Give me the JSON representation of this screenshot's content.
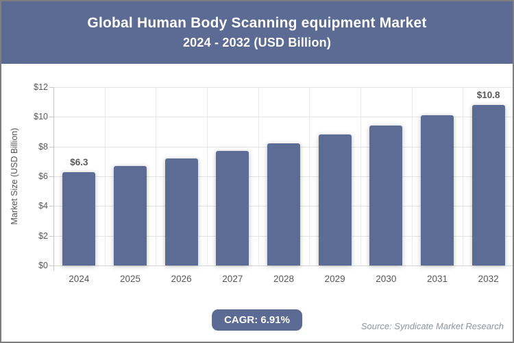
{
  "header": {
    "title_line1": "Global Human Body Scanning equipment Market",
    "title_line2": "2024 - 2032 (USD Billion)"
  },
  "chart_data": {
    "type": "bar",
    "title": "Global Human Body Scanning equipment Market",
    "subtitle": "2024 - 2032 (USD Billion)",
    "categories": [
      "2024",
      "2025",
      "2026",
      "2027",
      "2028",
      "2029",
      "2030",
      "2031",
      "2032"
    ],
    "values": [
      6.3,
      6.7,
      7.2,
      7.7,
      8.2,
      8.8,
      9.4,
      10.1,
      10.8
    ],
    "bar_value_labels": [
      "$6.3",
      null,
      null,
      null,
      null,
      null,
      null,
      null,
      "$10.8"
    ],
    "xlabel": "",
    "ylabel": "Market Size (USD Billion)",
    "ylim": [
      0,
      12
    ],
    "ytick_step": 2,
    "ytick_prefix": "$",
    "ytick_labels": [
      "$0",
      "$2",
      "$4",
      "$6",
      "$8",
      "$10",
      "$12"
    ],
    "grid": true,
    "legend": "none",
    "bar_color": "#5d6c94"
  },
  "footer": {
    "cagr_badge": "CAGR: 6.91%",
    "source": "Source: Syndicate Market Research"
  },
  "colors": {
    "header_bg": "#5c6b94",
    "bar": "#5d6c94",
    "badge_bg": "#5c6b94",
    "grid_line": "#e4e4e4",
    "axis_line": "#c6c6c6",
    "tick_text": "#595959",
    "source_text": "#8d95a0",
    "title_text": "#ffffff"
  }
}
